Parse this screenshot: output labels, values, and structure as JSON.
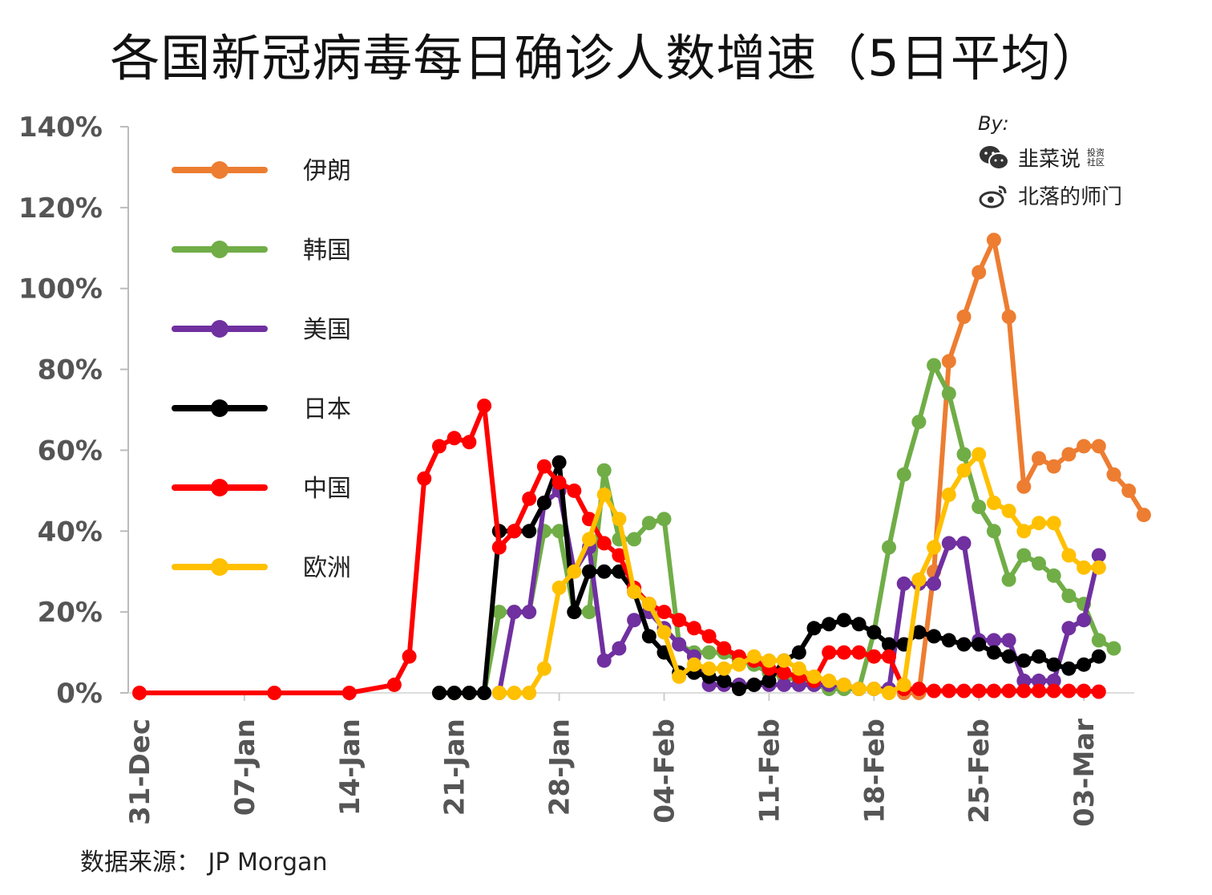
{
  "title": "各国新冠病毒每日确诊人数增速（5日平均）",
  "source": "数据来源： JP Morgan",
  "credit": {
    "by": "By:",
    "wechat": "韭菜说",
    "wechat_tag": "投资社区",
    "weibo": "北落的师门"
  },
  "chart_data": {
    "type": "line",
    "title": "各国新冠病毒每日确诊人数增速（5日平均）",
    "xlabel": "",
    "ylabel": "",
    "ylim": [
      0,
      140
    ],
    "yticks": [
      "0%",
      "20%",
      "40%",
      "60%",
      "80%",
      "100%",
      "120%",
      "140%"
    ],
    "xticks": [
      "31-Dec",
      "07-Jan",
      "14-Jan",
      "21-Jan",
      "28-Jan",
      "04-Feb",
      "11-Feb",
      "18-Feb",
      "25-Feb",
      "03-Mar"
    ],
    "x_unit": "days since 31-Dec",
    "legend_position": "top-left",
    "grid": false,
    "series": [
      {
        "name": "伊朗",
        "color": "#ED7D31",
        "points": [
          [
            51,
            0
          ],
          [
            52,
            0
          ],
          [
            53,
            30
          ],
          [
            54,
            82
          ],
          [
            55,
            93
          ],
          [
            56,
            104
          ],
          [
            57,
            112
          ],
          [
            58,
            93
          ],
          [
            59,
            51
          ],
          [
            60,
            58
          ],
          [
            61,
            56
          ],
          [
            62,
            59
          ],
          [
            63,
            61
          ],
          [
            64,
            61
          ],
          [
            65,
            54
          ],
          [
            66,
            50
          ],
          [
            67,
            44
          ]
        ]
      },
      {
        "name": "韩国",
        "color": "#70AD47",
        "points": [
          [
            20,
            0
          ],
          [
            21,
            0
          ],
          [
            22,
            0
          ],
          [
            23,
            0
          ],
          [
            24,
            20
          ],
          [
            25,
            20
          ],
          [
            26,
            20
          ],
          [
            27,
            40
          ],
          [
            28,
            40
          ],
          [
            29,
            20
          ],
          [
            30,
            20
          ],
          [
            31,
            55
          ],
          [
            32,
            38
          ],
          [
            33,
            38
          ],
          [
            34,
            42
          ],
          [
            35,
            43
          ],
          [
            36,
            12
          ],
          [
            37,
            10
          ],
          [
            38,
            10
          ],
          [
            39,
            10
          ],
          [
            40,
            8
          ],
          [
            41,
            7
          ],
          [
            42,
            5
          ],
          [
            43,
            4
          ],
          [
            44,
            3
          ],
          [
            45,
            2
          ],
          [
            46,
            1
          ],
          [
            47,
            1
          ],
          [
            48,
            1
          ],
          [
            49,
            15
          ],
          [
            50,
            36
          ],
          [
            51,
            54
          ],
          [
            52,
            67
          ],
          [
            53,
            81
          ],
          [
            54,
            74
          ],
          [
            55,
            59
          ],
          [
            56,
            46
          ],
          [
            57,
            40
          ],
          [
            58,
            28
          ],
          [
            59,
            34
          ],
          [
            60,
            32
          ],
          [
            61,
            29
          ],
          [
            62,
            24
          ],
          [
            63,
            22
          ],
          [
            64,
            13
          ],
          [
            65,
            11
          ]
        ]
      },
      {
        "name": "美国",
        "color": "#7030A0",
        "points": [
          [
            24,
            0
          ],
          [
            25,
            20
          ],
          [
            26,
            20
          ],
          [
            27,
            47
          ],
          [
            28,
            50
          ],
          [
            29,
            30
          ],
          [
            30,
            36
          ],
          [
            31,
            8
          ],
          [
            32,
            11
          ],
          [
            33,
            18
          ],
          [
            34,
            20
          ],
          [
            35,
            16
          ],
          [
            36,
            12
          ],
          [
            37,
            9
          ],
          [
            38,
            2
          ],
          [
            39,
            2
          ],
          [
            40,
            2
          ],
          [
            41,
            2
          ],
          [
            42,
            2
          ],
          [
            43,
            2
          ],
          [
            44,
            2
          ],
          [
            45,
            2
          ],
          [
            46,
            2
          ],
          [
            47,
            2
          ],
          [
            48,
            1
          ],
          [
            49,
            1
          ],
          [
            50,
            1
          ],
          [
            51,
            27
          ],
          [
            52,
            27
          ],
          [
            53,
            27
          ],
          [
            54,
            37
          ],
          [
            55,
            37
          ],
          [
            56,
            13
          ],
          [
            57,
            13
          ],
          [
            58,
            13
          ],
          [
            59,
            3
          ],
          [
            60,
            3
          ],
          [
            61,
            3
          ],
          [
            62,
            16
          ],
          [
            63,
            18
          ],
          [
            64,
            34
          ]
        ]
      },
      {
        "name": "日本",
        "color": "#000000",
        "points": [
          [
            20,
            0
          ],
          [
            21,
            0
          ],
          [
            22,
            0
          ],
          [
            23,
            0
          ],
          [
            24,
            40
          ],
          [
            25,
            40
          ],
          [
            26,
            40
          ],
          [
            27,
            47
          ],
          [
            28,
            57
          ],
          [
            29,
            20
          ],
          [
            30,
            30
          ],
          [
            31,
            30
          ],
          [
            32,
            30
          ],
          [
            33,
            25
          ],
          [
            34,
            14
          ],
          [
            35,
            10
          ],
          [
            36,
            5
          ],
          [
            37,
            5
          ],
          [
            38,
            4
          ],
          [
            39,
            3
          ],
          [
            40,
            1
          ],
          [
            41,
            2
          ],
          [
            42,
            3
          ],
          [
            43,
            8
          ],
          [
            44,
            10
          ],
          [
            45,
            16
          ],
          [
            46,
            17
          ],
          [
            47,
            18
          ],
          [
            48,
            17
          ],
          [
            49,
            15
          ],
          [
            50,
            12
          ],
          [
            51,
            12
          ],
          [
            52,
            15
          ],
          [
            53,
            14
          ],
          [
            54,
            13
          ],
          [
            55,
            12
          ],
          [
            56,
            12
          ],
          [
            57,
            10
          ],
          [
            58,
            9
          ],
          [
            59,
            8
          ],
          [
            60,
            9
          ],
          [
            61,
            7
          ],
          [
            62,
            6
          ],
          [
            63,
            7
          ],
          [
            64,
            9
          ]
        ]
      },
      {
        "name": "中国",
        "color": "#FF0000",
        "points": [
          [
            0,
            0
          ],
          [
            9,
            0
          ],
          [
            14,
            0
          ],
          [
            17,
            2
          ],
          [
            18,
            9
          ],
          [
            19,
            53
          ],
          [
            20,
            61
          ],
          [
            21,
            63
          ],
          [
            22,
            62
          ],
          [
            23,
            71
          ],
          [
            24,
            36
          ],
          [
            25,
            40
          ],
          [
            26,
            48
          ],
          [
            27,
            56
          ],
          [
            28,
            52
          ],
          [
            29,
            50
          ],
          [
            30,
            43
          ],
          [
            31,
            37
          ],
          [
            32,
            34
          ],
          [
            33,
            26
          ],
          [
            34,
            22
          ],
          [
            35,
            20
          ],
          [
            36,
            18
          ],
          [
            37,
            16
          ],
          [
            38,
            14
          ],
          [
            39,
            11
          ],
          [
            40,
            9
          ],
          [
            41,
            8
          ],
          [
            42,
            6
          ],
          [
            43,
            5
          ],
          [
            44,
            4
          ],
          [
            45,
            3
          ],
          [
            46,
            10
          ],
          [
            47,
            10
          ],
          [
            48,
            10
          ],
          [
            49,
            9
          ],
          [
            50,
            9
          ],
          [
            51,
            1
          ],
          [
            52,
            1
          ],
          [
            53,
            0.5
          ],
          [
            54,
            0.5
          ],
          [
            55,
            0.5
          ],
          [
            56,
            0.5
          ],
          [
            57,
            0.5
          ],
          [
            58,
            0.5
          ],
          [
            59,
            0.5
          ],
          [
            60,
            0.5
          ],
          [
            61,
            0.5
          ],
          [
            62,
            0.5
          ],
          [
            63,
            0.5
          ],
          [
            64,
            0.3
          ]
        ]
      },
      {
        "name": "欧洲",
        "color": "#FFC000",
        "points": [
          [
            24,
            0
          ],
          [
            25,
            0
          ],
          [
            26,
            0
          ],
          [
            27,
            6
          ],
          [
            28,
            26
          ],
          [
            29,
            30
          ],
          [
            30,
            38
          ],
          [
            31,
            49
          ],
          [
            32,
            43
          ],
          [
            33,
            25
          ],
          [
            34,
            22
          ],
          [
            35,
            15
          ],
          [
            36,
            4
          ],
          [
            37,
            7
          ],
          [
            38,
            6
          ],
          [
            39,
            6
          ],
          [
            40,
            7
          ],
          [
            41,
            9
          ],
          [
            42,
            8
          ],
          [
            43,
            8
          ],
          [
            44,
            6
          ],
          [
            45,
            4
          ],
          [
            46,
            3
          ],
          [
            47,
            2
          ],
          [
            48,
            1
          ],
          [
            49,
            1
          ],
          [
            50,
            0
          ],
          [
            51,
            2
          ],
          [
            52,
            28
          ],
          [
            53,
            36
          ],
          [
            54,
            49
          ],
          [
            55,
            55
          ],
          [
            56,
            59
          ],
          [
            57,
            47
          ],
          [
            58,
            45
          ],
          [
            59,
            40
          ],
          [
            60,
            42
          ],
          [
            61,
            42
          ],
          [
            62,
            34
          ],
          [
            63,
            31
          ],
          [
            64,
            31
          ]
        ]
      }
    ]
  }
}
